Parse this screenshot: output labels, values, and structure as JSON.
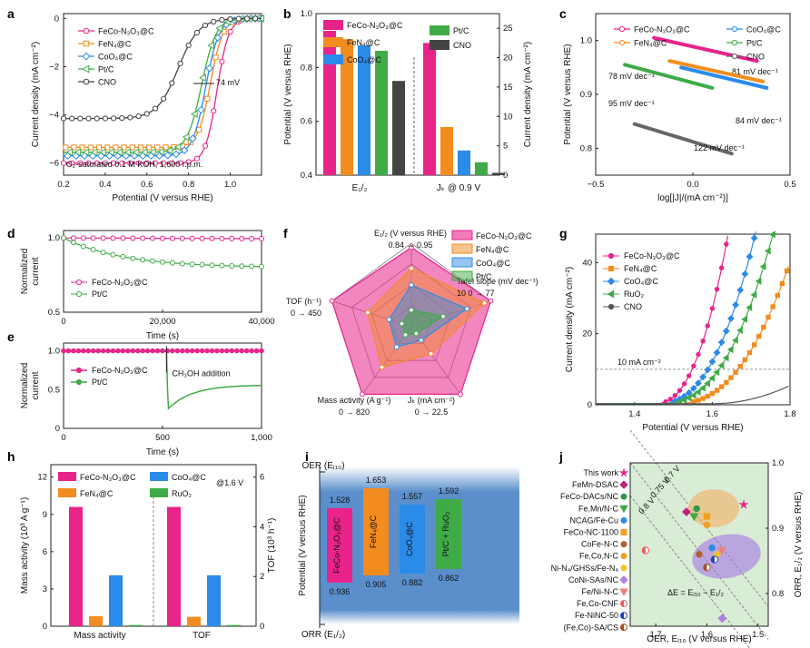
{
  "colors": {
    "feco": "#e8238a",
    "fen4": "#f28c1e",
    "coo4": "#2b8be8",
    "ptc": "#3fab47",
    "cno": "#444444",
    "ruo2": "#3fab47"
  },
  "panel_labels": [
    "a",
    "b",
    "c",
    "d",
    "e",
    "f",
    "g",
    "h",
    "i",
    "j"
  ],
  "chart_data": [
    {
      "panel": "a",
      "type": "line",
      "title": "",
      "xlabel": "Potential (V versus RHE)",
      "ylabel": "Current density (mA cm⁻²)",
      "xlim": [
        0.2,
        1.15
      ],
      "ylim": [
        -6.5,
        0.2
      ],
      "xticks": [
        "0.2",
        "0.4",
        "0.6",
        "0.8",
        "1.0"
      ],
      "yticks": [
        "-6",
        "-4",
        "-2",
        "0"
      ],
      "annotation": "O₂-saturated 0.1 M KOH, 1,600 r.p.m.",
      "delta_label": "74 mV",
      "series": [
        {
          "name": "FeCo-N₃O₃@C",
          "color": "#e8238a",
          "marker": "circle",
          "plateau": -6.0,
          "e_half": 0.936,
          "width": 0.028
        },
        {
          "name": "FeN₄@C",
          "color": "#f28c1e",
          "marker": "square",
          "plateau": -5.35,
          "e_half": 0.905,
          "width": 0.03
        },
        {
          "name": "CoO₄@C",
          "color": "#2b8be8",
          "marker": "diamond",
          "plateau": -5.7,
          "e_half": 0.882,
          "width": 0.032
        },
        {
          "name": "Pt/C",
          "color": "#3fab47",
          "marker": "triangle",
          "plateau": -5.55,
          "e_half": 0.862,
          "width": 0.035
        },
        {
          "name": "CNO",
          "color": "#444444",
          "marker": "circle",
          "plateau": -4.15,
          "e_half": 0.75,
          "width": 0.05
        }
      ]
    },
    {
      "panel": "b",
      "type": "bar",
      "xlabel": "",
      "ylabel_left": "Potential (V versus RHE)",
      "ylabel_right": "Current density (mA cm⁻²)",
      "ylim_left": [
        0.4,
        1.0
      ],
      "ylim_right": [
        0,
        27.5
      ],
      "yticks_left": [
        "0.4",
        "0.6",
        "0.8",
        "1.0"
      ],
      "yticks_right": [
        "0",
        "5",
        "10",
        "15",
        "20",
        "25"
      ],
      "group_labels": [
        "E₁/₂",
        "Jₖ @ 0.9 V"
      ],
      "legend": [
        "FeCo-N₃O₃@C",
        "FeN₄@C",
        "CoO₄@C",
        "Pt/C",
        "CNO"
      ],
      "e_half": [
        0.936,
        0.905,
        0.882,
        0.862,
        0.75
      ],
      "jk": [
        22.5,
        8.2,
        4.2,
        2.2,
        0.4
      ]
    },
    {
      "panel": "c",
      "type": "line",
      "xlabel": "log[|J|/(mA cm⁻²)]",
      "ylabel": "Potential (V versus RHE)",
      "xlim": [
        -0.5,
        0.5
      ],
      "ylim": [
        0.75,
        1.05
      ],
      "xticks": [
        "-0.5",
        "0.0",
        "0.5"
      ],
      "yticks": [
        "0.8",
        "0.9",
        "1.0"
      ],
      "series": [
        {
          "name": "FeCo-N₃O₃@C",
          "color": "#e8238a",
          "x0": -0.2,
          "y0": 1.005,
          "x1": 0.33,
          "y1": 0.962,
          "tafel": "81 mV dec⁻¹"
        },
        {
          "name": "FeN₄@C",
          "color": "#f28c1e",
          "x0": -0.12,
          "y0": 0.962,
          "x1": 0.36,
          "y1": 0.924,
          "tafel": "78 mV dec⁻¹"
        },
        {
          "name": "CoO₄@C",
          "color": "#2b8be8",
          "x0": -0.06,
          "y0": 0.95,
          "x1": 0.38,
          "y1": 0.912,
          "tafel": "84 mV dec⁻¹"
        },
        {
          "name": "Pt/C",
          "color": "#3fab47",
          "x0": -0.35,
          "y0": 0.955,
          "x1": 0.1,
          "y1": 0.912,
          "tafel": "95 mV dec⁻¹"
        },
        {
          "name": "CNO",
          "color": "#666666",
          "x0": -0.3,
          "y0": 0.845,
          "x1": 0.2,
          "y1": 0.79,
          "tafel": "122 mV dec⁻¹"
        }
      ]
    },
    {
      "panel": "d",
      "type": "line",
      "xlabel": "Time (s)",
      "ylabel": "Normalized current",
      "xlim": [
        0,
        40000
      ],
      "ylim": [
        0.5,
        1.05
      ],
      "xticks": [
        "0",
        "20,000",
        "40,000"
      ],
      "yticks": [
        "0.5",
        "1.0"
      ],
      "series": [
        {
          "name": "FeCo-N₃O₃@C",
          "color": "#e8238a",
          "end": 0.995
        },
        {
          "name": "Pt/C",
          "color": "#3fab47",
          "end": 0.8
        }
      ]
    },
    {
      "panel": "e",
      "type": "line",
      "xlabel": "Time (s)",
      "ylabel": "Normalized current",
      "xlim": [
        0,
        1000
      ],
      "ylim": [
        0,
        1.1
      ],
      "xticks": [
        "0",
        "500",
        "1,000"
      ],
      "yticks": [
        "0",
        "0.5",
        "1.0"
      ],
      "annotation": "CH₃OH addition",
      "event_time": 520,
      "series": [
        {
          "name": "FeCo-N₃O₃@C",
          "color": "#e8238a"
        },
        {
          "name": "Pt/C",
          "color": "#3fab47"
        }
      ]
    },
    {
      "panel": "f",
      "type": "radar",
      "axes": [
        {
          "label": "E₁/₂ (V versus RHE)",
          "range": "0.84 → 0.95"
        },
        {
          "label": "Tafel slope (mV dec⁻¹)",
          "range": "10 0 → 77"
        },
        {
          "label": "Jₖ (mA cm⁻²)",
          "range": "0 → 22.5"
        },
        {
          "label": "Mass activity (A g⁻¹)",
          "range": "0 → 820"
        },
        {
          "label": "TOF (h⁻¹)",
          "range": "0 → 450"
        }
      ],
      "series": [
        {
          "name": "FeCo-N₃O₃@C",
          "color": "#e8238a",
          "values": [
            0.95,
            1.0,
            1.0,
            1.0,
            1.0
          ]
        },
        {
          "name": "FeN₄@C",
          "color": "#f28c1e",
          "values": [
            0.7,
            0.92,
            0.4,
            0.6,
            0.55
          ]
        },
        {
          "name": "CoO₄@C",
          "color": "#2b8be8",
          "values": [
            0.5,
            0.7,
            0.2,
            0.3,
            0.28
          ]
        },
        {
          "name": "Pt/C",
          "color": "#3fab47",
          "values": [
            0.2,
            0.4,
            0.1,
            0.12,
            0.12
          ]
        }
      ]
    },
    {
      "panel": "g",
      "type": "line",
      "xlabel": "Potential (V versus RHE)",
      "ylabel": "Current density (mA cm⁻²)",
      "xlim": [
        1.3,
        1.8
      ],
      "ylim": [
        0,
        48
      ],
      "xticks": [
        "1.4",
        "1.6",
        "1.8"
      ],
      "yticks": [
        "0",
        "20",
        "40"
      ],
      "reference_line": "10 mA cm⁻²",
      "series": [
        {
          "name": "FeCo-N₃O₃@C",
          "color": "#e8238a",
          "onset": 1.45,
          "k": 10.5
        },
        {
          "name": "FeN₄@C",
          "color": "#f28c1e",
          "onset": 1.5,
          "k": 6.2
        },
        {
          "name": "CoO₄@C",
          "color": "#2b8be8",
          "onset": 1.46,
          "k": 8.0
        },
        {
          "name": "RuO₂",
          "color": "#3fab47",
          "onset": 1.47,
          "k": 7.0
        },
        {
          "name": "CNO",
          "color": "#555555",
          "onset": 1.6,
          "k": 4.0
        }
      ]
    },
    {
      "panel": "h",
      "type": "bar",
      "ylabel_left": "Mass activity (10³ A g⁻¹)",
      "ylabel_right": "TOF (10³ h⁻¹)",
      "ylim_left": [
        0,
        13
      ],
      "ylim_right": [
        0,
        6.5
      ],
      "yticks_left": [
        "0",
        "3",
        "6",
        "9",
        "12"
      ],
      "yticks_right": [
        "0",
        "2",
        "4",
        "6"
      ],
      "group_labels": [
        "Mass activity",
        "TOF"
      ],
      "note": "@1.6 V",
      "legend": [
        "FeCo-N₃O₃@C",
        "FeN₄@C",
        "CoO₄@C",
        "RuO₂"
      ],
      "mass_activity": [
        9.6,
        0.8,
        4.1,
        0.1
      ],
      "tof": [
        4.8,
        0.38,
        2.05,
        0.05
      ]
    },
    {
      "panel": "i",
      "type": "bar",
      "top_label": "OER (Eⱼ₁₀)",
      "bottom_label": "ORR (E₁/₂)",
      "ylabel": "Potential (V versus RHE)",
      "bars": [
        {
          "name": "FeCo-N₃O₃@C",
          "top": "1.528",
          "bottom": "0.936",
          "color": "#e8238a"
        },
        {
          "name": "FeN₄@C",
          "top": "1.653",
          "bottom": "0.905",
          "color": "#f28c1e"
        },
        {
          "name": "CoO₄@C",
          "top": "1.557",
          "bottom": "0.882",
          "color": "#2b8be8"
        },
        {
          "name": "Pt/C + RuO₂",
          "top": "1.592",
          "bottom": "0.862",
          "color": "#3fab47"
        }
      ]
    },
    {
      "panel": "j",
      "type": "scatter",
      "xlabel": "OER, Eⱼ₁₀ (V versus RHE)",
      "ylabel": "ORR, E₁/₂ (V versus RHE)",
      "xlim": [
        1.75,
        1.48
      ],
      "ylim": [
        0.75,
        1.0
      ],
      "xticks": [
        "1.7",
        "1.6",
        "1.5"
      ],
      "yticks": [
        "0.8",
        "0.9",
        "1.0"
      ],
      "diagonals": [
        "0.7 V",
        "0.75 V",
        "0.8 V"
      ],
      "formula": "ΔE = Eⱼ₁₀ − E₁/₂",
      "points": [
        {
          "name": "This work",
          "color": "#e8238a",
          "shape": "star",
          "x": 1.528,
          "y": 0.936
        },
        {
          "name": "FeMn-DSAC",
          "color": "#c02080",
          "shape": "diamond",
          "x": 1.64,
          "y": 0.925
        },
        {
          "name": "FeCo-DACs/NC",
          "color": "#2a9a4a",
          "shape": "circle",
          "x": 1.62,
          "y": 0.93
        },
        {
          "name": "Fe,Mn/N-C",
          "color": "#3fab47",
          "shape": "tri-down",
          "x": 1.625,
          "y": 0.918
        },
        {
          "name": "NCAG/Fe-Cu",
          "color": "#2b8be8",
          "shape": "circle",
          "x": 1.59,
          "y": 0.87
        },
        {
          "name": "FeCo-NC-1100",
          "color": "#f2a020",
          "shape": "square",
          "x": 1.6,
          "y": 0.918
        },
        {
          "name": "CoFe-N-C",
          "color": "#b06030",
          "shape": "circle",
          "x": 1.615,
          "y": 0.86
        },
        {
          "name": "Fe,Co,N-C",
          "color": "#f2a020",
          "shape": "circle",
          "x": 1.6,
          "y": 0.905
        },
        {
          "name": "Ni-N₄/GHSs/Fe-N₄",
          "color": "#f5c020",
          "shape": "circle",
          "x": 1.58,
          "y": 0.86
        },
        {
          "name": "CoNi-SAs/NC",
          "color": "#b080e0",
          "shape": "diamond",
          "x": 1.57,
          "y": 0.762
        },
        {
          "name": "Fe/Ni-N-C",
          "color": "#f08080",
          "shape": "tri-down",
          "x": 1.57,
          "y": 0.866
        },
        {
          "name": "Fe,Co-CNF",
          "color": "#e86060",
          "shape": "half",
          "x": 1.72,
          "y": 0.866
        },
        {
          "name": "Fe-NiNC-50",
          "color": "#2040b0",
          "shape": "half",
          "x": 1.585,
          "y": 0.852
        },
        {
          "name": "(Fe,Co)-SA/CS",
          "color": "#a05020",
          "shape": "half",
          "x": 1.6,
          "y": 0.84
        }
      ]
    }
  ]
}
